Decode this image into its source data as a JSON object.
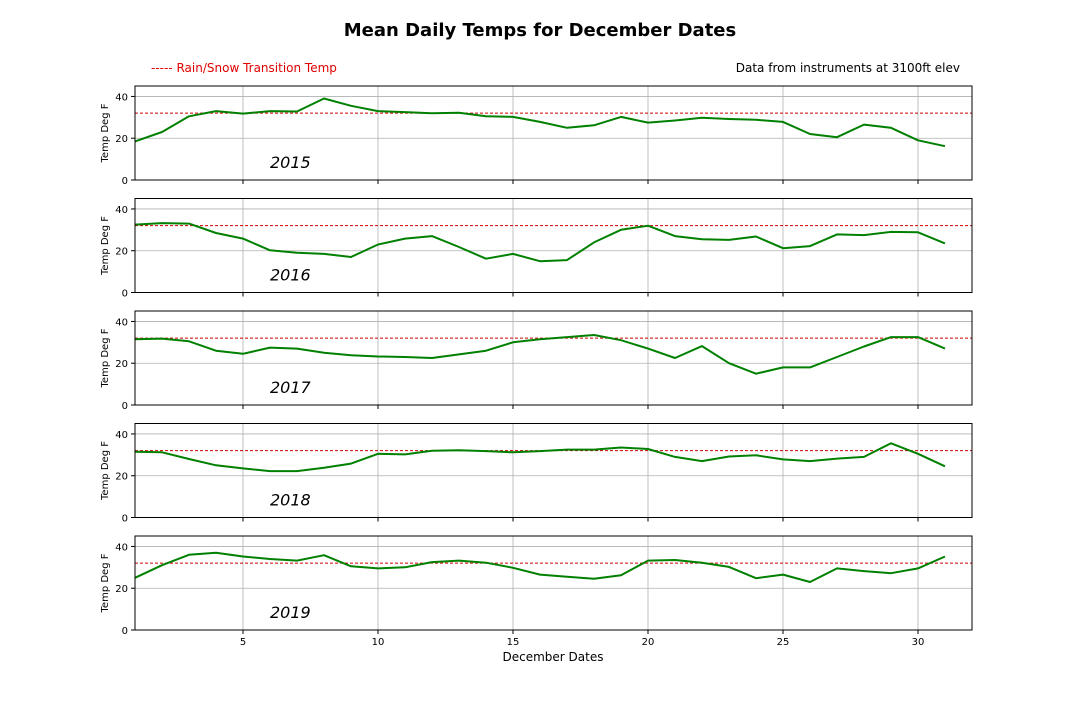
{
  "figure": {
    "title": "Mean Daily Temps for December Dates",
    "legend_label": "----- Rain/Snow Transition Temp",
    "note": "Data from instruments at 3100ft elev",
    "xlabel": "December Dates",
    "ylabel": "Temp Deg F"
  },
  "colors": {
    "series": "#008000",
    "threshold": "#cc0000",
    "legend_text": "#e00000",
    "grid": "#b0b0b0",
    "axes": "#000000"
  },
  "chart_data": [
    {
      "type": "line",
      "year_label": "2015",
      "x": [
        1,
        2,
        3,
        4,
        5,
        6,
        7,
        8,
        9,
        10,
        11,
        12,
        13,
        14,
        15,
        16,
        17,
        18,
        19,
        20,
        21,
        22,
        23,
        24,
        25,
        26,
        27,
        28,
        29,
        30,
        31
      ],
      "y": [
        18.5,
        23,
        30.5,
        33,
        31.8,
        33,
        32.8,
        39,
        35.5,
        33,
        32.5,
        32,
        32.2,
        30.5,
        30.2,
        27.8,
        25,
        26.2,
        30.2,
        27.5,
        28.5,
        29.8,
        29.2,
        28.8,
        27.8,
        22,
        20.5,
        26.5,
        25,
        19,
        16.2
      ],
      "threshold": 32,
      "xlim": [
        1,
        32
      ],
      "ylim": [
        0,
        45
      ],
      "yticks": [
        0,
        20,
        40
      ],
      "xticks": [
        5,
        10,
        15,
        20,
        25,
        30
      ],
      "grid": true
    },
    {
      "type": "line",
      "year_label": "2016",
      "x": [
        1,
        2,
        3,
        4,
        5,
        6,
        7,
        8,
        9,
        10,
        11,
        12,
        13,
        14,
        15,
        16,
        17,
        18,
        19,
        20,
        21,
        22,
        23,
        24,
        25,
        26,
        27,
        28,
        29,
        30,
        31
      ],
      "y": [
        32.5,
        33.2,
        33,
        28.5,
        25.8,
        20.2,
        19,
        18.5,
        17,
        23,
        25.8,
        27,
        21.8,
        16.2,
        18.5,
        15,
        15.5,
        24,
        30,
        32,
        27,
        25.5,
        25.2,
        26.8,
        21.2,
        22.2,
        27.8,
        27.5,
        29,
        28.8,
        23.5
      ],
      "threshold": 32,
      "xlim": [
        1,
        32
      ],
      "ylim": [
        0,
        45
      ],
      "yticks": [
        0,
        20,
        40
      ],
      "xticks": [
        5,
        10,
        15,
        20,
        25,
        30
      ],
      "grid": true
    },
    {
      "type": "line",
      "year_label": "2017",
      "x": [
        1,
        2,
        3,
        4,
        5,
        6,
        7,
        8,
        9,
        10,
        11,
        12,
        13,
        14,
        15,
        16,
        17,
        18,
        19,
        20,
        21,
        22,
        23,
        24,
        25,
        26,
        27,
        28,
        29,
        30,
        31
      ],
      "y": [
        31.5,
        31.8,
        30.5,
        26,
        24.5,
        27.5,
        27,
        25,
        23.8,
        23.2,
        23,
        22.5,
        24.2,
        26,
        30,
        31.5,
        32.5,
        33.5,
        31,
        27,
        22.5,
        28.2,
        20,
        15,
        18,
        18,
        23,
        28,
        32.5,
        32.5,
        27
      ],
      "threshold": 32,
      "xlim": [
        1,
        32
      ],
      "ylim": [
        0,
        45
      ],
      "yticks": [
        0,
        20,
        40
      ],
      "xticks": [
        5,
        10,
        15,
        20,
        25,
        30
      ],
      "grid": true
    },
    {
      "type": "line",
      "year_label": "2018",
      "x": [
        1,
        2,
        3,
        4,
        5,
        6,
        7,
        8,
        9,
        10,
        11,
        12,
        13,
        14,
        15,
        16,
        17,
        18,
        19,
        20,
        21,
        22,
        23,
        24,
        25,
        26,
        27,
        28,
        29,
        30,
        31
      ],
      "y": [
        31.5,
        31.2,
        28,
        25,
        23.5,
        22.2,
        22.2,
        23.8,
        25.8,
        30.5,
        30.2,
        32,
        32.2,
        31.8,
        31.2,
        31.8,
        32.5,
        32.5,
        33.5,
        32.8,
        29,
        27,
        29.2,
        29.8,
        27.8,
        27,
        28.2,
        29,
        35.5,
        30.5,
        24.5
      ],
      "threshold": 32,
      "xlim": [
        1,
        32
      ],
      "ylim": [
        0,
        45
      ],
      "yticks": [
        0,
        20,
        40
      ],
      "xticks": [
        5,
        10,
        15,
        20,
        25,
        30
      ],
      "grid": true
    },
    {
      "type": "line",
      "year_label": "2019",
      "x": [
        1,
        2,
        3,
        4,
        5,
        6,
        7,
        8,
        9,
        10,
        11,
        12,
        13,
        14,
        15,
        16,
        17,
        18,
        19,
        20,
        21,
        22,
        23,
        24,
        25,
        26,
        27,
        28,
        29,
        30,
        31
      ],
      "y": [
        25,
        31,
        36,
        37,
        35.2,
        34,
        33.2,
        35.8,
        30.5,
        29.5,
        30,
        32.5,
        33.2,
        32.2,
        29.8,
        26.5,
        25.5,
        24.5,
        26.2,
        33.2,
        33.5,
        32.2,
        30.2,
        24.8,
        26.5,
        23,
        29.5,
        28.2,
        27.2,
        29.5,
        35.2
      ],
      "threshold": 32,
      "xlim": [
        1,
        32
      ],
      "ylim": [
        0,
        45
      ],
      "yticks": [
        0,
        20,
        40
      ],
      "xticks": [
        5,
        10,
        15,
        20,
        25,
        30
      ],
      "grid": true
    }
  ]
}
